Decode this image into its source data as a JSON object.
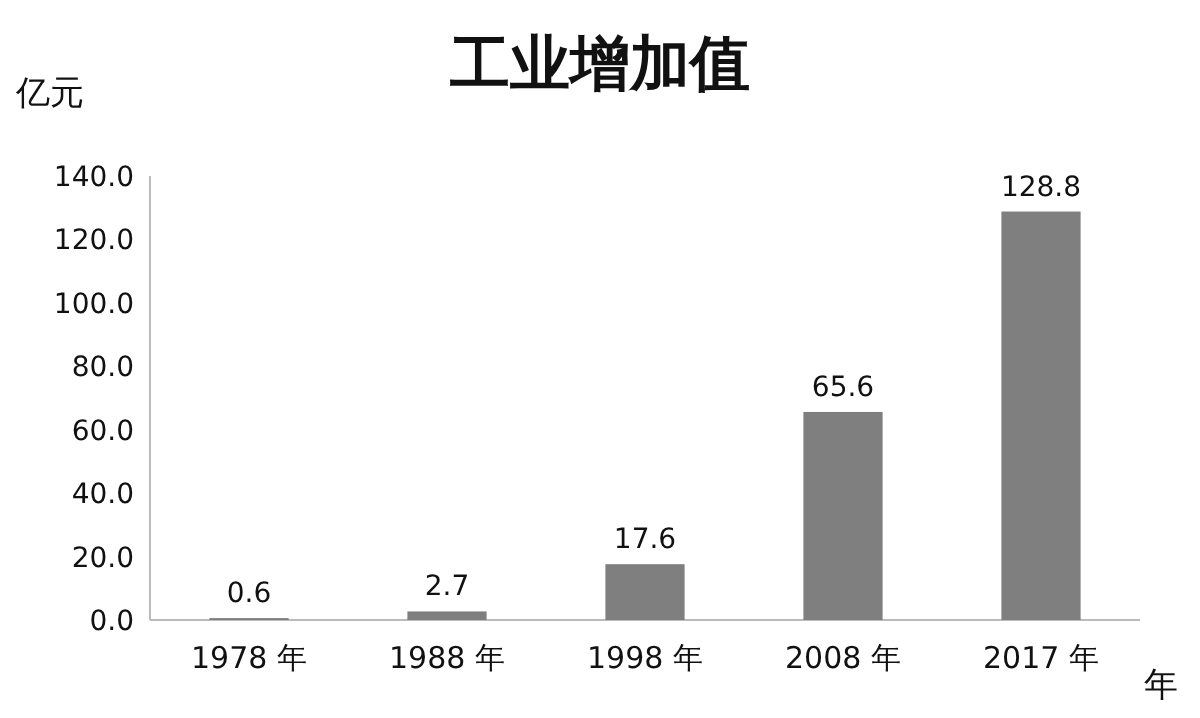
{
  "chart_data": {
    "type": "bar",
    "title": "工业增加值",
    "ylabel": "亿元",
    "xlabel": "年",
    "categories": [
      "1978 年",
      "1988 年",
      "1998 年",
      "2008 年",
      "2017 年"
    ],
    "values": [
      0.6,
      2.7,
      17.6,
      65.6,
      128.8
    ],
    "color": "#7f7f7f",
    "ylim": [
      0,
      140
    ],
    "yticks": [
      {
        "value": 0,
        "label": "0.0"
      },
      {
        "value": 20,
        "label": "20.0"
      },
      {
        "value": 40,
        "label": "40.0"
      },
      {
        "value": 60,
        "label": "60.0"
      },
      {
        "value": 80,
        "label": "80.0"
      },
      {
        "value": 100,
        "label": "100.0"
      },
      {
        "value": 120,
        "label": "120.0"
      },
      {
        "value": 140,
        "label": "140.0"
      }
    ],
    "data_labels": true
  }
}
